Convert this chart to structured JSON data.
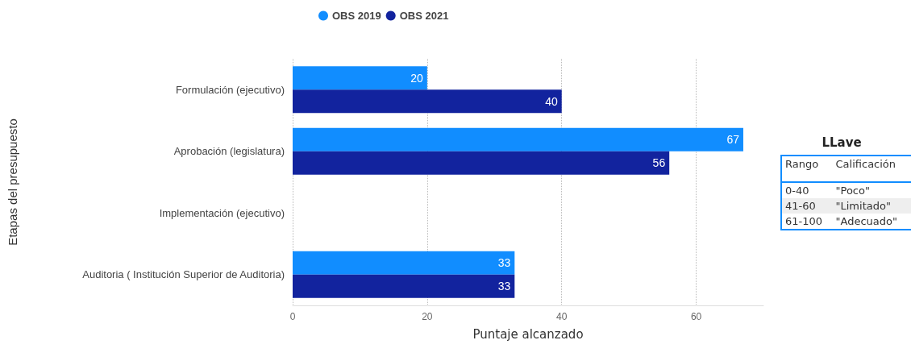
{
  "chart_data": [
    {
      "type": "bar",
      "orientation": "horizontal",
      "xlabel": "Puntaje alcanzado",
      "ylabel": "Etapas del presupuesto",
      "categories": [
        "Formulación (ejecutivo)",
        "Aprobación (legislatura)",
        "Implementación (ejecutivo)",
        "Auditoria ( Institución Superior de Auditoria)"
      ],
      "series": [
        {
          "name": "OBS 2019",
          "color": "#118dff",
          "values": [
            20,
            67,
            null,
            33
          ]
        },
        {
          "name": "OBS 2021",
          "color": "#12239e",
          "values": [
            40,
            56,
            null,
            33
          ]
        }
      ],
      "xlim": [
        0,
        70
      ],
      "xticks": [
        0,
        20,
        40,
        60
      ],
      "grid": "x",
      "legend": "top left",
      "data_labels": true
    },
    {
      "type": "other",
      "title": "LLave",
      "annotations": [
        "Rango",
        "Calificación",
        "0-40",
        "\"Poco\"",
        "41-60",
        "\"Limitado\"",
        "61-100",
        "\"Adecuado\""
      ]
    }
  ]
}
